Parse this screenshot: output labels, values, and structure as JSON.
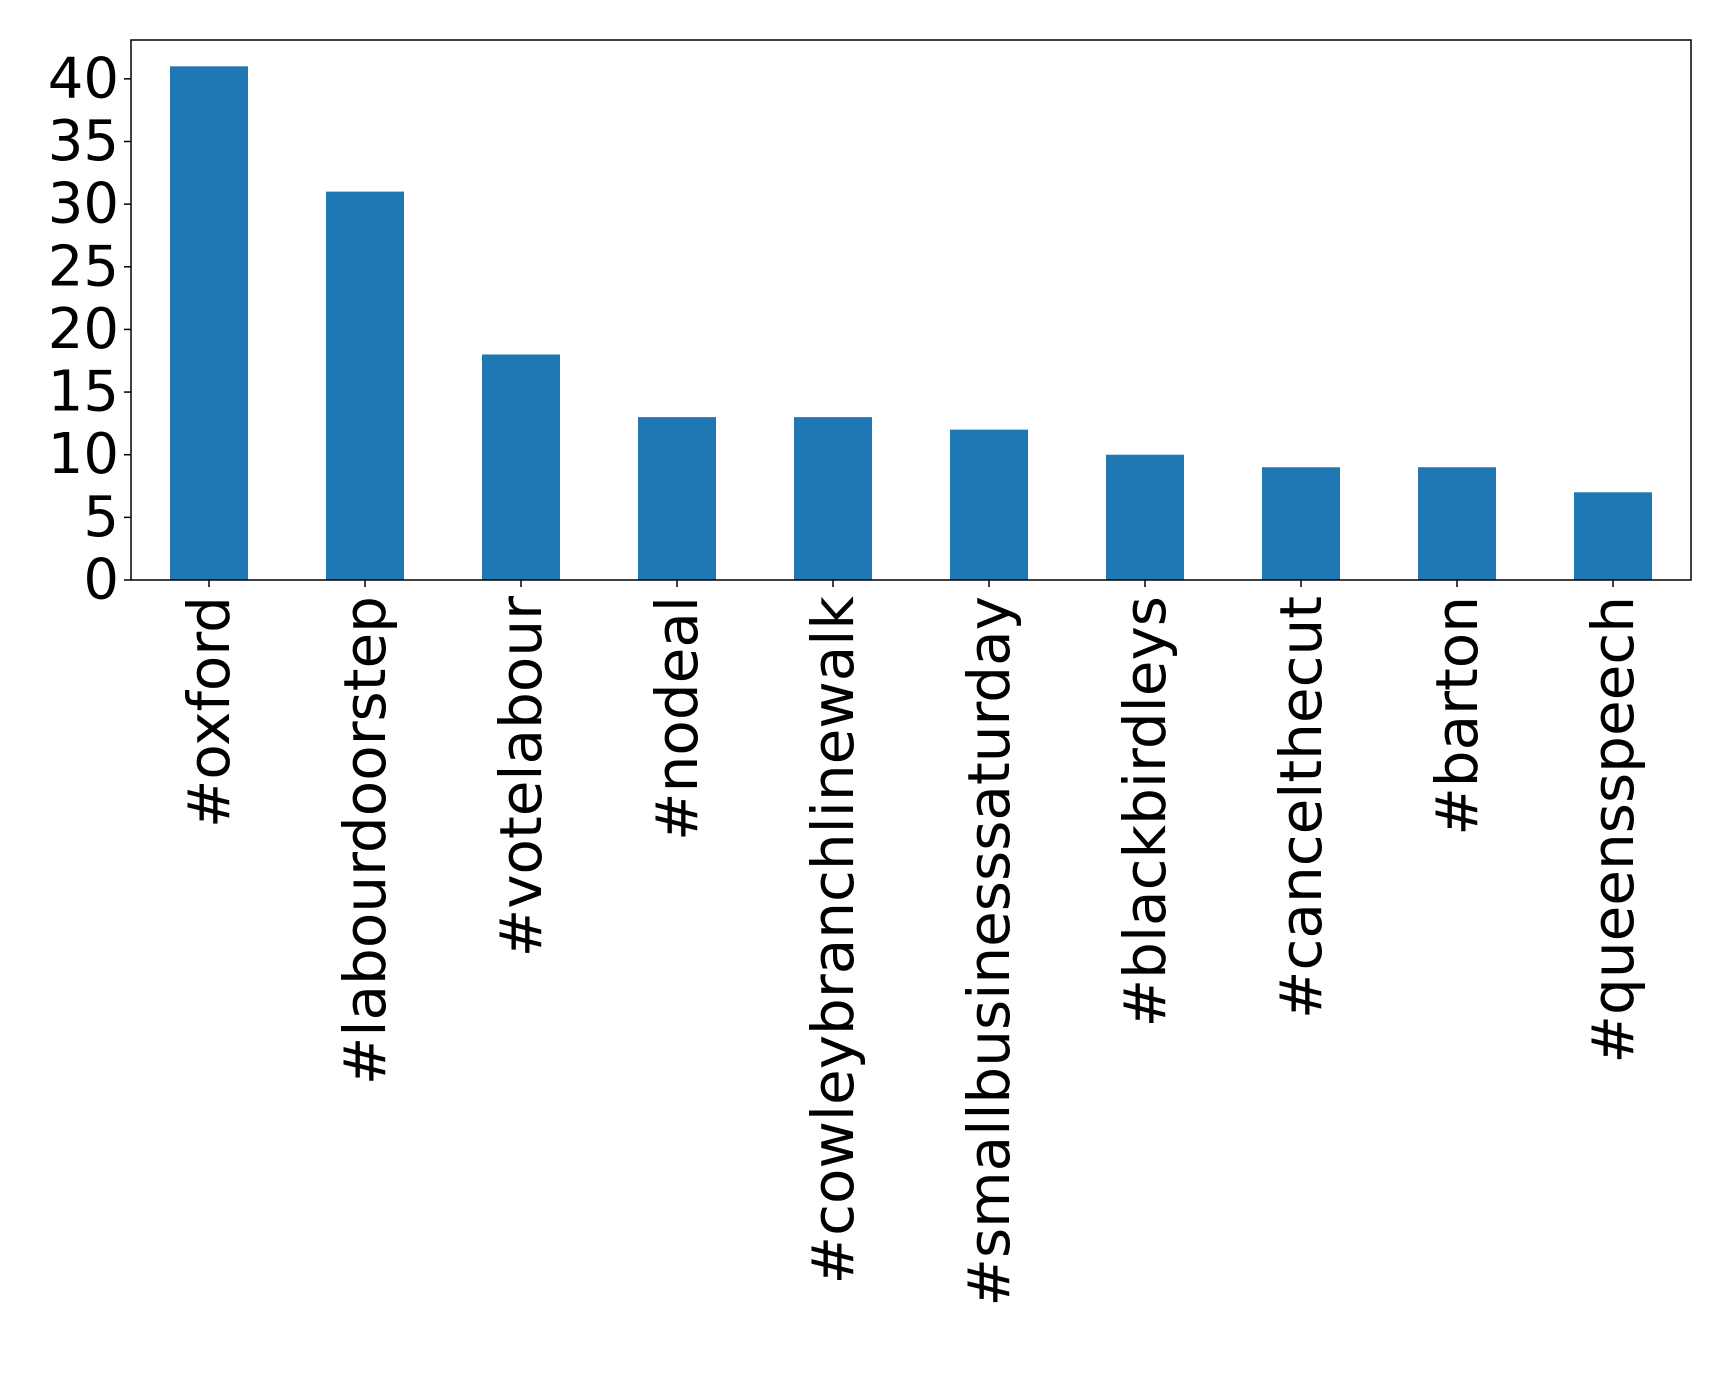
{
  "chart_data": {
    "type": "bar",
    "title": "",
    "xlabel": "",
    "ylabel": "",
    "categories": [
      "#oxford",
      "#labourdoorstep",
      "#votelabour",
      "#nodeal",
      "#cowleybranchlinewalk",
      "#smallbusinesssaturday",
      "#blackbirdleys",
      "#cancelthecut",
      "#barton",
      "#queensspeech"
    ],
    "values": [
      41,
      31,
      18,
      13,
      13,
      12,
      10,
      9,
      9,
      7
    ],
    "ylim": [
      0,
      43.1
    ],
    "yticks": [
      0,
      5,
      10,
      15,
      20,
      25,
      30,
      35,
      40
    ],
    "grid": false,
    "legend": "none",
    "bar_color": "#1f77b4"
  }
}
